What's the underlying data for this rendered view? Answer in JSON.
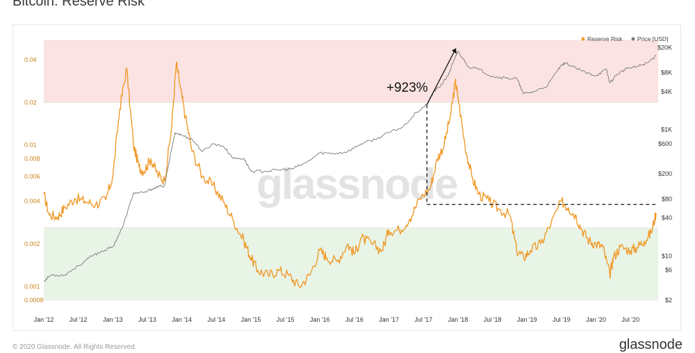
{
  "page": {
    "title": "Bitcoin: Reserve Risk",
    "footer": "© 2020 Glassnode. All Rights Reserved.",
    "brand": "glassnode",
    "watermark": "glassnode"
  },
  "chart_data": {
    "type": "line",
    "title": "Bitcoin: Reserve Risk",
    "legend": {
      "placement": "top-right",
      "items": [
        {
          "name": "Reserve Risk",
          "color": "#f09a2a"
        },
        {
          "name": "Price [USD]",
          "color": "#777777"
        }
      ]
    },
    "x_ticks": [
      "Jan '12",
      "Jul '12",
      "Jan '13",
      "Jul '13",
      "Jan '14",
      "Jul '14",
      "Jan '15",
      "Jul '15",
      "Jan '16",
      "Jul '16",
      "Jan '17",
      "Jul '17",
      "Jan '18",
      "Jul '18",
      "Jan '19",
      "Jul '19",
      "Jan '20",
      "Jul '20"
    ],
    "y_left": {
      "scale": "log",
      "ticks": [
        "0.0008",
        "0.001",
        "0.002",
        "0.004",
        "0.006",
        "0.008",
        "0.01",
        "0.02",
        "0.04"
      ],
      "range": [
        0.0008,
        0.055
      ]
    },
    "y_right": {
      "scale": "log",
      "ticks": [
        "$2",
        "$6",
        "$10",
        "$40",
        "$80",
        "$200",
        "$600",
        "$1K",
        "$4K",
        "$8K",
        "$20K"
      ],
      "range": [
        2,
        26000
      ]
    },
    "bands": [
      {
        "name": "high-risk",
        "from": 0.02,
        "to": 0.055,
        "color": "#fbe3e3"
      },
      {
        "name": "low-risk",
        "from": 0.0008,
        "to": 0.0026,
        "color": "#e8f4e6"
      }
    ],
    "annotation": {
      "text": "+923%"
    },
    "grid": false,
    "series": [
      {
        "name": "Reserve Risk",
        "axis": "left",
        "color": "#f09a2a",
        "x": [
          2012.0,
          2012.08,
          2012.2,
          2012.3,
          2012.45,
          2012.6,
          2012.75,
          2012.9,
          2013.0,
          2013.1,
          2013.2,
          2013.3,
          2013.38,
          2013.45,
          2013.55,
          2013.65,
          2013.75,
          2013.85,
          2013.92,
          2013.98,
          2014.05,
          2014.15,
          2014.3,
          2014.45,
          2014.6,
          2014.75,
          2014.9,
          2015.0,
          2015.1,
          2015.25,
          2015.4,
          2015.55,
          2015.7,
          2015.85,
          2016.0,
          2016.1,
          2016.25,
          2016.4,
          2016.5,
          2016.6,
          2016.75,
          2016.9,
          2017.0,
          2017.15,
          2017.3,
          2017.45,
          2017.6,
          2017.7,
          2017.8,
          2017.9,
          2017.96,
          2018.0,
          2018.1,
          2018.2,
          2018.3,
          2018.45,
          2018.6,
          2018.75,
          2018.85,
          2018.95,
          2019.05,
          2019.2,
          2019.35,
          2019.5,
          2019.6,
          2019.7,
          2019.8,
          2019.9,
          2020.0,
          2020.1,
          2020.2,
          2020.25,
          2020.35,
          2020.5,
          2020.6,
          2020.7,
          2020.8,
          2020.87
        ],
        "y": [
          0.0045,
          0.0032,
          0.0031,
          0.0036,
          0.0042,
          0.004,
          0.0038,
          0.0041,
          0.006,
          0.018,
          0.035,
          0.01,
          0.007,
          0.0065,
          0.008,
          0.0062,
          0.0056,
          0.013,
          0.038,
          0.025,
          0.016,
          0.009,
          0.006,
          0.0052,
          0.004,
          0.0029,
          0.0021,
          0.0016,
          0.0013,
          0.0012,
          0.0013,
          0.0012,
          0.001,
          0.0012,
          0.0018,
          0.0016,
          0.0015,
          0.002,
          0.0017,
          0.0022,
          0.002,
          0.0018,
          0.0025,
          0.0025,
          0.003,
          0.0042,
          0.005,
          0.008,
          0.01,
          0.017,
          0.028,
          0.022,
          0.01,
          0.006,
          0.0045,
          0.004,
          0.0035,
          0.0032,
          0.0018,
          0.0016,
          0.0018,
          0.002,
          0.0028,
          0.004,
          0.0036,
          0.0032,
          0.0025,
          0.0021,
          0.002,
          0.0019,
          0.0012,
          0.0016,
          0.0019,
          0.0018,
          0.0019,
          0.0021,
          0.0024,
          0.0033
        ]
      },
      {
        "name": "Price [USD]",
        "axis": "right",
        "color": "#777777",
        "x": [
          2012.0,
          2012.1,
          2012.3,
          2012.5,
          2012.7,
          2012.85,
          2013.0,
          2013.15,
          2013.3,
          2013.45,
          2013.6,
          2013.75,
          2013.9,
          2014.0,
          2014.15,
          2014.3,
          2014.45,
          2014.6,
          2014.75,
          2014.9,
          2015.0,
          2015.2,
          2015.4,
          2015.6,
          2015.8,
          2016.0,
          2016.2,
          2016.4,
          2016.6,
          2016.8,
          2017.0,
          2017.2,
          2017.4,
          2017.55,
          2017.65,
          2017.75,
          2017.85,
          2017.95,
          2018.0,
          2018.15,
          2018.3,
          2018.5,
          2018.7,
          2018.85,
          2018.95,
          2019.1,
          2019.3,
          2019.45,
          2019.55,
          2019.7,
          2019.85,
          2020.0,
          2020.15,
          2020.2,
          2020.3,
          2020.45,
          2020.6,
          2020.75,
          2020.87
        ],
        "y": [
          4,
          5,
          5,
          7,
          10,
          12,
          14,
          30,
          100,
          100,
          120,
          130,
          900,
          820,
          700,
          450,
          600,
          550,
          350,
          350,
          220,
          220,
          230,
          240,
          300,
          430,
          420,
          450,
          600,
          700,
          900,
          1100,
          1900,
          2500,
          4000,
          5000,
          7000,
          13000,
          17500,
          10000,
          9000,
          7000,
          6500,
          6500,
          3700,
          4000,
          5000,
          9000,
          11500,
          9500,
          8000,
          7200,
          9000,
          5500,
          7500,
          9300,
          10000,
          11500,
          15000
        ]
      }
    ]
  }
}
